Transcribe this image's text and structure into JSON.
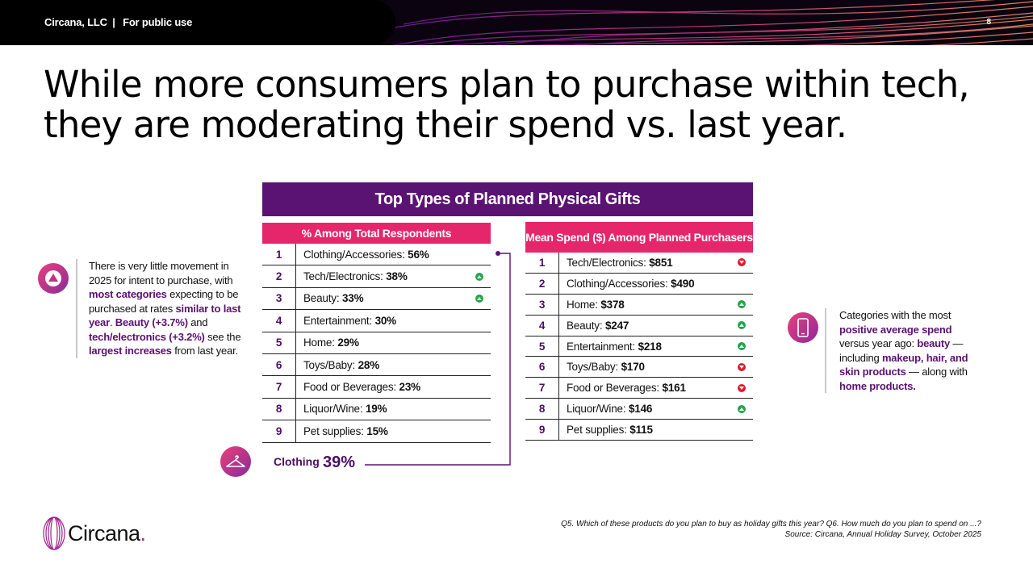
{
  "header": {
    "company": "Circana, LLC",
    "separator": "|",
    "classification": "For public use",
    "page_number": "8"
  },
  "headline": "While more consumers plan to purchase within tech, they are moderating their spend vs. last year.",
  "panel_title": "Top Types of Planned Physical Gifts",
  "left_table": {
    "header": "% Among Total Respondents",
    "rows": [
      {
        "rank": "1",
        "label": "Clothing/Accessories:",
        "value": "56%",
        "trend": ""
      },
      {
        "rank": "2",
        "label": "Tech/Electronics:",
        "value": "38%",
        "trend": "up"
      },
      {
        "rank": "3",
        "label": "Beauty:",
        "value": "33%",
        "trend": "up"
      },
      {
        "rank": "4",
        "label": "Entertainment:",
        "value": "30%",
        "trend": ""
      },
      {
        "rank": "5",
        "label": "Home:",
        "value": "29%",
        "trend": ""
      },
      {
        "rank": "6",
        "label": "Toys/Baby:",
        "value": "28%",
        "trend": ""
      },
      {
        "rank": "7",
        "label": "Food or Beverages:",
        "value": "23%",
        "trend": ""
      },
      {
        "rank": "8",
        "label": "Liquor/Wine:",
        "value": "19%",
        "trend": ""
      },
      {
        "rank": "9",
        "label": "Pet supplies:",
        "value": "15%",
        "trend": ""
      }
    ]
  },
  "right_table": {
    "header": "Mean Spend ($) Among Planned Purchasers",
    "rows": [
      {
        "rank": "1",
        "label": "Tech/Electronics:",
        "value": "$851",
        "trend": "down"
      },
      {
        "rank": "2",
        "label": "Clothing/Accessories:",
        "value": "$490",
        "trend": ""
      },
      {
        "rank": "3",
        "label": "Home:",
        "value": "$378",
        "trend": "up"
      },
      {
        "rank": "4",
        "label": "Beauty:",
        "value": "$247",
        "trend": "up"
      },
      {
        "rank": "5",
        "label": "Entertainment:",
        "value": "$218",
        "trend": "up"
      },
      {
        "rank": "6",
        "label": "Toys/Baby:",
        "value": "$170",
        "trend": "down"
      },
      {
        "rank": "7",
        "label": "Food or Beverages:",
        "value": "$161",
        "trend": "down"
      },
      {
        "rank": "8",
        "label": "Liquor/Wine:",
        "value": "$146",
        "trend": "up"
      },
      {
        "rank": "9",
        "label": "Pet supplies:",
        "value": "$115",
        "trend": ""
      }
    ]
  },
  "clothing_callout": {
    "label": "Clothing",
    "value": "39%"
  },
  "left_note": {
    "t1": "There is very little movement in 2025 for intent to purchase, with ",
    "h1": "most categories",
    "t2": " expecting to be purchased at rates ",
    "h2": "similar to last year",
    "t3": ". ",
    "h3": "Beauty (+3.7%)",
    "t4": " and ",
    "h4": "tech/electronics (+3.2%)",
    "t5": " see the ",
    "h5": "largest increases",
    "t6": " from last year."
  },
  "right_note": {
    "t1": "Categories with the most ",
    "h1": "positive average spend",
    "t2": " versus year ago: ",
    "h2": "beauty",
    "t3": " — including ",
    "h3": "makeup, hair, and skin products",
    "t4": " — along with ",
    "h4": "home products."
  },
  "footer": {
    "logo_text": "Circana",
    "logo_dot": ".",
    "question": "Q5. Which of these products do you plan to buy as holiday gifts this year? Q6. How much do you plan to spend on ...?",
    "source": "Source: Circana, Annual Holiday Survey, October 2025"
  },
  "colors": {
    "purple": "#5a1372",
    "pink": "#e6266b",
    "up": "#1fa64a",
    "down": "#e0182d"
  },
  "icons": {
    "left_note": "upward-triangle-icon",
    "right_note": "smartphone-icon",
    "clothing": "hanger-icon",
    "trend_up": "arrow-up-circle-icon",
    "trend_down": "arrow-down-circle-icon"
  }
}
